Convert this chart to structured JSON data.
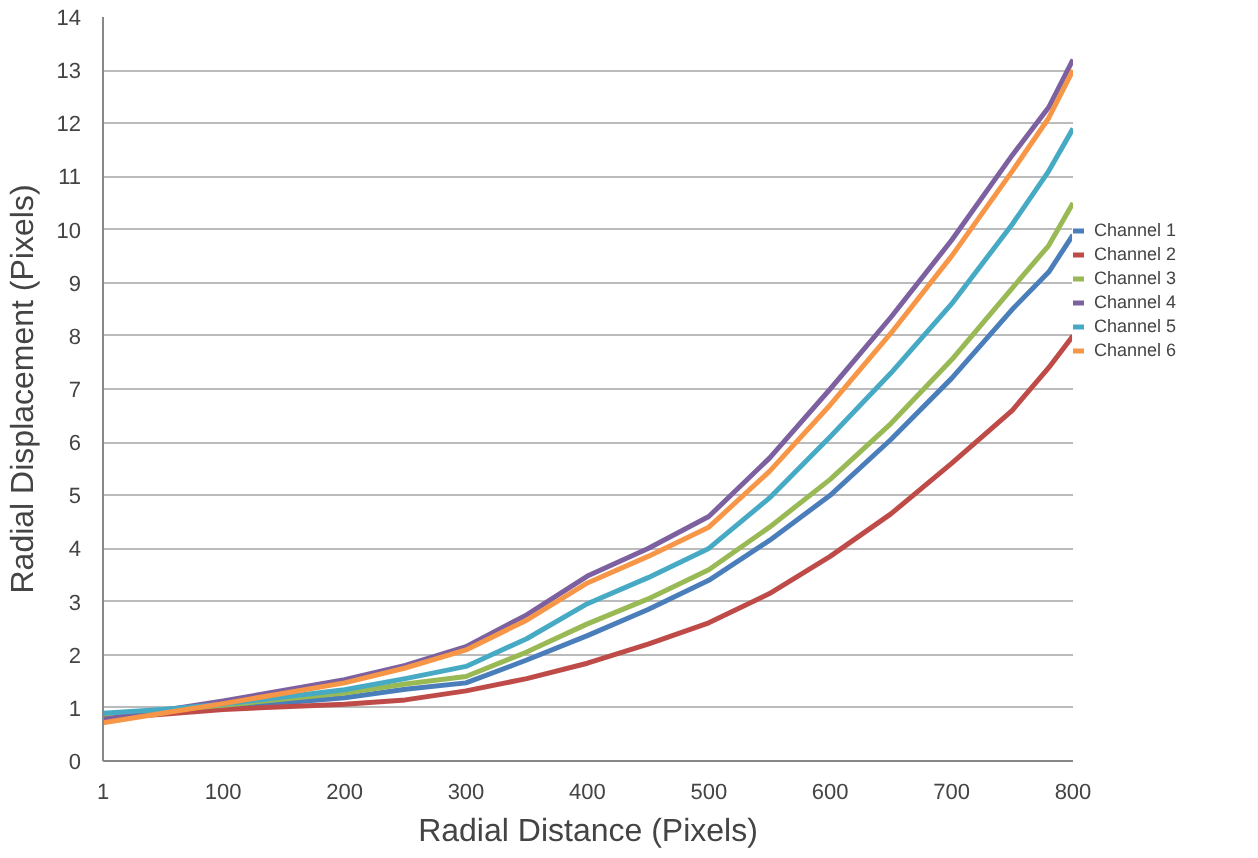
{
  "chart_data": {
    "type": "line",
    "xlabel": "Radial Distance (Pixels)",
    "ylabel": "Radial Displacement (Pixels)",
    "x": [
      1,
      50,
      100,
      200,
      250,
      300,
      350,
      400,
      450,
      500,
      550,
      600,
      650,
      700,
      750,
      780,
      800
    ],
    "xlim": [
      1,
      800
    ],
    "xticks": [
      1,
      100,
      200,
      300,
      400,
      500,
      600,
      700,
      800
    ],
    "ylim": [
      0,
      14
    ],
    "yticks": [
      0,
      1,
      2,
      3,
      4,
      5,
      6,
      7,
      8,
      9,
      10,
      11,
      12,
      13,
      14
    ],
    "grid": "y",
    "legend": "right",
    "marker": "none",
    "series": [
      {
        "name": "Channel 1",
        "color": "#4a7ebb",
        "values": [
          0.82,
          0.9,
          1.0,
          1.19,
          1.35,
          1.47,
          1.9,
          2.36,
          2.85,
          3.4,
          4.15,
          5.0,
          6.05,
          7.2,
          8.5,
          9.2,
          9.9
        ]
      },
      {
        "name": "Channel 2",
        "color": "#be4b48",
        "values": [
          0.8,
          0.88,
          0.97,
          1.07,
          1.15,
          1.32,
          1.55,
          1.84,
          2.2,
          2.6,
          3.15,
          3.85,
          4.65,
          5.6,
          6.6,
          7.4,
          8.0
        ]
      },
      {
        "name": "Channel 3",
        "color": "#98b954",
        "values": [
          0.88,
          0.95,
          1.05,
          1.28,
          1.45,
          1.59,
          2.05,
          2.58,
          3.05,
          3.6,
          4.4,
          5.3,
          6.35,
          7.55,
          8.9,
          9.7,
          10.5
        ]
      },
      {
        "name": "Channel 4",
        "color": "#7d60a0",
        "values": [
          0.78,
          0.95,
          1.13,
          1.53,
          1.8,
          2.15,
          2.75,
          3.48,
          4.0,
          4.6,
          5.7,
          7.0,
          8.35,
          9.8,
          11.4,
          12.3,
          13.2
        ]
      },
      {
        "name": "Channel 5",
        "color": "#46aac5",
        "values": [
          0.9,
          0.97,
          1.07,
          1.34,
          1.55,
          1.78,
          2.3,
          2.96,
          3.45,
          4.0,
          4.95,
          6.1,
          7.3,
          8.6,
          10.1,
          11.1,
          11.9
        ]
      },
      {
        "name": "Channel 6",
        "color": "#f79646",
        "values": [
          0.72,
          0.9,
          1.08,
          1.47,
          1.75,
          2.09,
          2.65,
          3.35,
          3.85,
          4.4,
          5.45,
          6.7,
          8.05,
          9.5,
          11.1,
          12.1,
          13.0
        ]
      }
    ]
  }
}
